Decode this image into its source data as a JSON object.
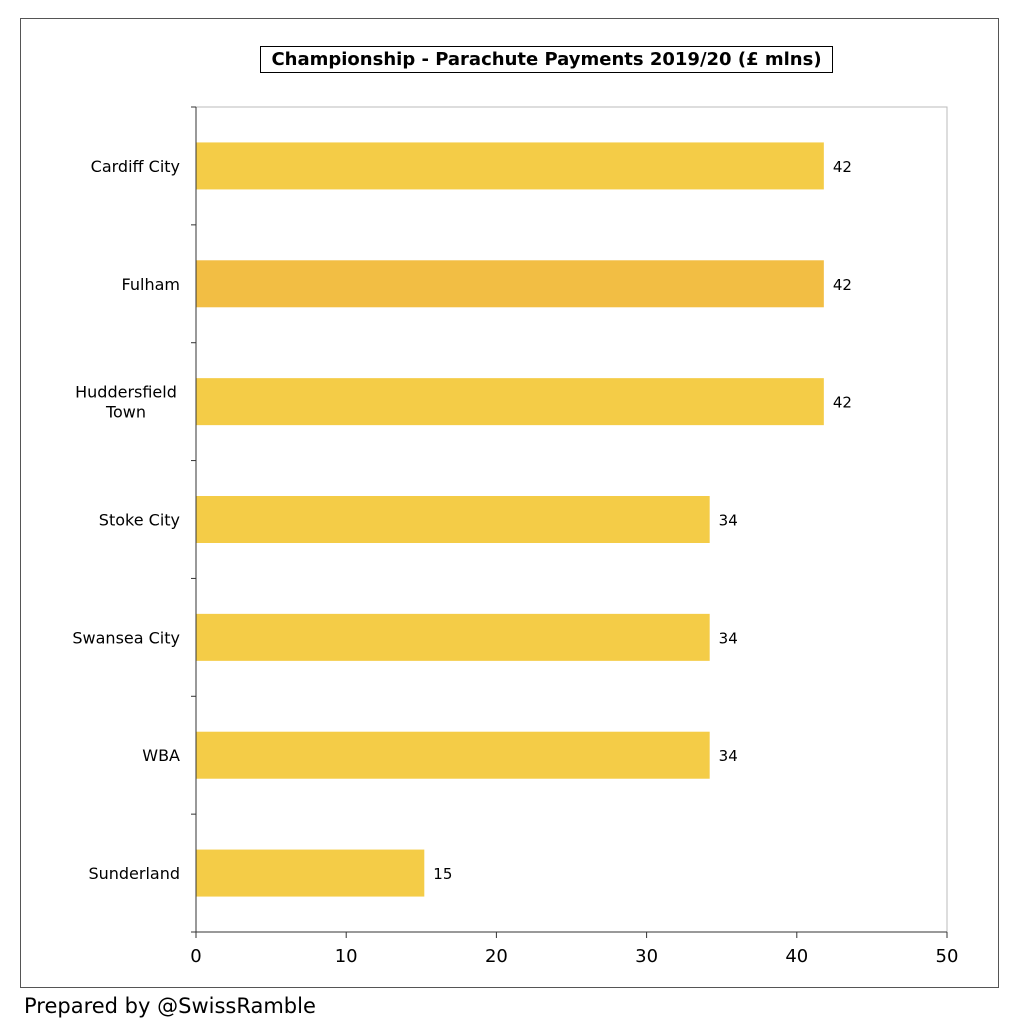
{
  "chart_data": {
    "type": "bar",
    "orientation": "horizontal",
    "title": "Championship - Parachute Payments 2019/20 (£ mlns)",
    "categories": [
      [
        "Cardiff City"
      ],
      [
        "Fulham"
      ],
      [
        "Huddersfield",
        "Town"
      ],
      [
        "Stoke City"
      ],
      [
        "Swansea City"
      ],
      [
        "WBA"
      ],
      [
        "Sunderland"
      ]
    ],
    "values": [
      41.8,
      41.8,
      41.8,
      34.2,
      34.2,
      34.2,
      15.2
    ],
    "value_labels": [
      "42",
      "42",
      "42",
      "34",
      "34",
      "34",
      "15"
    ],
    "xlim": [
      0,
      50
    ],
    "x_ticks": [
      0,
      10,
      20,
      30,
      40,
      50
    ],
    "x_tick_labels": [
      "0",
      "10",
      "20",
      "30",
      "40",
      "50"
    ],
    "bar_colors": [
      "#f4cc47",
      "#f2be44",
      "#f4cc47",
      "#f4cc47",
      "#f4cc47",
      "#f4cc47",
      "#f4cc47"
    ],
    "grid": false,
    "legend": "none"
  },
  "footer": {
    "credit": "Prepared by @SwissRamble"
  }
}
